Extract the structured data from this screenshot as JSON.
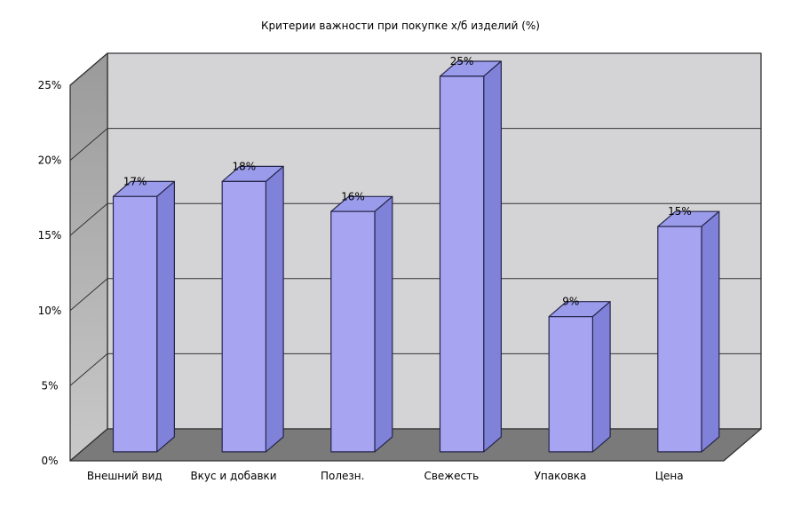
{
  "chart_data": {
    "type": "bar",
    "projection": "3d-box",
    "title": "Критерии важности при покупке х/б изделий (%)",
    "categories": [
      "Внешний вид",
      "Вкус и добавки",
      "Полезн.",
      "Свежесть",
      "Упаковка",
      "Цена"
    ],
    "values": [
      17,
      18,
      16,
      25,
      9,
      15
    ],
    "data_labels": [
      "17%",
      "18%",
      "16%",
      "25%",
      "9%",
      "15%"
    ],
    "xlabel": "",
    "ylabel": "",
    "ylim": [
      0,
      25
    ],
    "y_ticks": [
      {
        "value": 0,
        "label": "0%"
      },
      {
        "value": 5,
        "label": "5%"
      },
      {
        "value": 10,
        "label": "10%"
      },
      {
        "value": 15,
        "label": "15%"
      },
      {
        "value": 20,
        "label": "20%"
      },
      {
        "value": 25,
        "label": "25%"
      }
    ],
    "grid": true,
    "legend": "none",
    "colors": {
      "bar_front": "#a7a4f2",
      "bar_side": "#7f82d8",
      "bar_top": "#9a9ceb",
      "bar_outline": "#26264a",
      "wall_back": "#d4d3d6",
      "wall_left_top": "#9a9a9a",
      "wall_left_bottom": "#c9c9c9",
      "floor": "#7a7a7a",
      "line": "#333333",
      "text": "#000000",
      "background": "#ffffff"
    }
  }
}
